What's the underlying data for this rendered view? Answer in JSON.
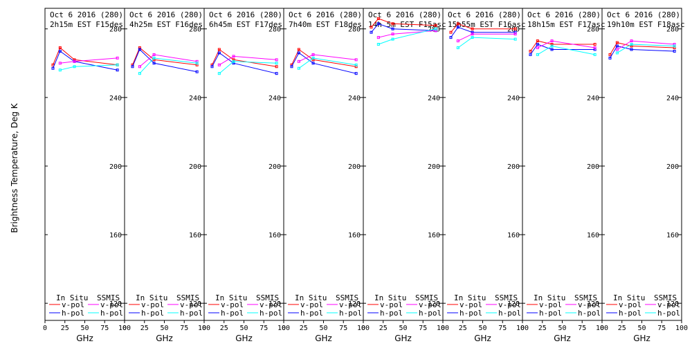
{
  "figure": {
    "ylabel": "Brightness Temperature, Deg K",
    "xlabel": "GHz",
    "legend": {
      "in_situ_header": "In Situ",
      "ssmis_header": "SSMIS",
      "vpol_label": "v-pol",
      "hpol_label": "h-pol"
    }
  },
  "colors": {
    "in_situ_vpol": "#ff0000",
    "in_situ_hpol": "#0000ff",
    "ssmis_vpol": "#ff00ff",
    "ssmis_hpol": "#00ffff",
    "axes": "#000000",
    "background": "#ffffff"
  },
  "chart_data": [
    {
      "type": "line",
      "title_line1": "Oct 6 2016 (280)",
      "title_line2": "2h15m EST F15des",
      "xlim": [
        0,
        100
      ],
      "ylim": [
        110,
        292
      ],
      "xticks": [
        0,
        25,
        50,
        75,
        100
      ],
      "xtick_labels": [
        "0",
        "25",
        "50",
        "75",
        "100"
      ],
      "yticks": [
        120,
        160,
        200,
        240,
        280
      ],
      "ytick_labels": [
        "120",
        "160",
        "200",
        "240",
        "280"
      ],
      "series": [
        {
          "name": "In Situ v-pol",
          "x": [
            10,
            19,
            37,
            91
          ],
          "y": [
            259,
            269,
            262,
            259
          ]
        },
        {
          "name": "In Situ h-pol",
          "x": [
            10,
            19,
            37,
            91
          ],
          "y": [
            257,
            267,
            261,
            256
          ]
        },
        {
          "name": "SSMIS v-pol",
          "x": [
            19,
            37,
            91
          ],
          "y": [
            260,
            261,
            263
          ]
        },
        {
          "name": "SSMIS h-pol",
          "x": [
            19,
            37,
            91
          ],
          "y": [
            256,
            258,
            259
          ]
        }
      ]
    },
    {
      "type": "line",
      "title_line1": "Oct 6 2016 (280)",
      "title_line2": "4h25m EST F16des",
      "xlim": [
        0,
        100
      ],
      "ylim": [
        110,
        292
      ],
      "xticks": [
        0,
        25,
        50,
        75,
        100
      ],
      "xtick_labels": [
        "0",
        "25",
        "50",
        "75",
        "100"
      ],
      "yticks": [
        120,
        160,
        200,
        240,
        280
      ],
      "ytick_labels": [
        "120",
        "160",
        "200",
        "240",
        "280"
      ],
      "series": [
        {
          "name": "In Situ v-pol",
          "x": [
            10,
            19,
            37,
            91
          ],
          "y": [
            259,
            269,
            262,
            259
          ]
        },
        {
          "name": "In Situ h-pol",
          "x": [
            10,
            19,
            37,
            91
          ],
          "y": [
            258,
            268,
            260,
            255
          ]
        },
        {
          "name": "SSMIS v-pol",
          "x": [
            19,
            37,
            91
          ],
          "y": [
            258,
            265,
            261
          ]
        },
        {
          "name": "SSMIS h-pol",
          "x": [
            19,
            37,
            91
          ],
          "y": [
            254,
            263,
            260
          ]
        }
      ]
    },
    {
      "type": "line",
      "title_line1": "Oct 6 2016 (280)",
      "title_line2": "6h45m EST F17des",
      "xlim": [
        0,
        100
      ],
      "ylim": [
        110,
        292
      ],
      "xticks": [
        0,
        25,
        50,
        75,
        100
      ],
      "xtick_labels": [
        "0",
        "25",
        "50",
        "75",
        "100"
      ],
      "yticks": [
        120,
        160,
        200,
        240,
        280
      ],
      "ytick_labels": [
        "120",
        "160",
        "200",
        "240",
        "280"
      ],
      "series": [
        {
          "name": "In Situ v-pol",
          "x": [
            10,
            19,
            37,
            91
          ],
          "y": [
            259,
            268,
            262,
            258
          ]
        },
        {
          "name": "In Situ h-pol",
          "x": [
            10,
            19,
            37,
            91
          ],
          "y": [
            258,
            266,
            260,
            254
          ]
        },
        {
          "name": "SSMIS v-pol",
          "x": [
            19,
            37,
            91
          ],
          "y": [
            259,
            264,
            262
          ]
        },
        {
          "name": "SSMIS h-pol",
          "x": [
            19,
            37,
            91
          ],
          "y": [
            254,
            261,
            260
          ]
        }
      ]
    },
    {
      "type": "line",
      "title_line1": "Oct 6 2016 (280)",
      "title_line2": "7h40m EST F18des",
      "xlim": [
        0,
        100
      ],
      "ylim": [
        110,
        292
      ],
      "xticks": [
        0,
        25,
        50,
        75,
        100
      ],
      "xtick_labels": [
        "0",
        "25",
        "50",
        "75",
        "100"
      ],
      "yticks": [
        120,
        160,
        200,
        240,
        280
      ],
      "ytick_labels": [
        "120",
        "160",
        "200",
        "240",
        "280"
      ],
      "series": [
        {
          "name": "In Situ v-pol",
          "x": [
            10,
            19,
            37,
            91
          ],
          "y": [
            259,
            268,
            262,
            258
          ]
        },
        {
          "name": "In Situ h-pol",
          "x": [
            10,
            19,
            37,
            91
          ],
          "y": [
            258,
            266,
            260,
            254
          ]
        },
        {
          "name": "SSMIS v-pol",
          "x": [
            19,
            37,
            91
          ],
          "y": [
            261,
            265,
            262
          ]
        },
        {
          "name": "SSMIS h-pol",
          "x": [
            19,
            37,
            91
          ],
          "y": [
            257,
            263,
            259
          ]
        }
      ]
    },
    {
      "type": "line",
      "title_line1": "Oct 6 2016 (280)",
      "title_line2": "14h 5m EST F15asc",
      "xlim": [
        0,
        100
      ],
      "ylim": [
        110,
        292
      ],
      "xticks": [
        0,
        25,
        50,
        75,
        100
      ],
      "xtick_labels": [
        "0",
        "25",
        "50",
        "75",
        "100"
      ],
      "yticks": [
        120,
        160,
        200,
        240,
        280
      ],
      "ytick_labels": [
        "120",
        "160",
        "200",
        "240",
        "280"
      ],
      "series": [
        {
          "name": "In Situ v-pol",
          "x": [
            10,
            19,
            37,
            91
          ],
          "y": [
            281,
            286,
            283,
            282
          ]
        },
        {
          "name": "In Situ h-pol",
          "x": [
            10,
            19,
            37,
            91
          ],
          "y": [
            278,
            283,
            280,
            279
          ]
        },
        {
          "name": "SSMIS v-pol",
          "x": [
            19,
            37,
            91
          ],
          "y": [
            275,
            277,
            279
          ]
        },
        {
          "name": "SSMIS h-pol",
          "x": [
            19,
            37,
            91
          ],
          "y": [
            271,
            274,
            280
          ]
        }
      ]
    },
    {
      "type": "line",
      "title_line1": "Oct 6 2016 (280)",
      "title_line2": "15h55m EST F16asc",
      "xlim": [
        0,
        100
      ],
      "ylim": [
        110,
        292
      ],
      "xticks": [
        0,
        25,
        50,
        75,
        100
      ],
      "xtick_labels": [
        "0",
        "25",
        "50",
        "75",
        "100"
      ],
      "yticks": [
        120,
        160,
        200,
        240,
        280
      ],
      "ytick_labels": [
        "120",
        "160",
        "200",
        "240",
        "280"
      ],
      "series": [
        {
          "name": "In Situ v-pol",
          "x": [
            10,
            19,
            37,
            91
          ],
          "y": [
            278,
            283,
            280,
            280
          ]
        },
        {
          "name": "In Situ h-pol",
          "x": [
            10,
            19,
            37,
            91
          ],
          "y": [
            275,
            281,
            278,
            278
          ]
        },
        {
          "name": "SSMIS v-pol",
          "x": [
            19,
            37,
            91
          ],
          "y": [
            273,
            277,
            277
          ]
        },
        {
          "name": "SSMIS h-pol",
          "x": [
            19,
            37,
            91
          ],
          "y": [
            269,
            275,
            274
          ]
        }
      ]
    },
    {
      "type": "line",
      "title_line1": "Oct 6 2016 (280)",
      "title_line2": "18h15m EST F17asc",
      "xlim": [
        0,
        100
      ],
      "ylim": [
        110,
        292
      ],
      "xticks": [
        0,
        25,
        50,
        75,
        100
      ],
      "xtick_labels": [
        "0",
        "25",
        "50",
        "75",
        "100"
      ],
      "yticks": [
        120,
        160,
        200,
        240,
        280
      ],
      "ytick_labels": [
        "120",
        "160",
        "200",
        "240",
        "280"
      ],
      "series": [
        {
          "name": "In Situ v-pol",
          "x": [
            10,
            19,
            37,
            91
          ],
          "y": [
            267,
            273,
            271,
            271
          ]
        },
        {
          "name": "In Situ h-pol",
          "x": [
            10,
            19,
            37,
            91
          ],
          "y": [
            265,
            271,
            268,
            268
          ]
        },
        {
          "name": "SSMIS v-pol",
          "x": [
            19,
            37,
            91
          ],
          "y": [
            269,
            273,
            269
          ]
        },
        {
          "name": "SSMIS h-pol",
          "x": [
            19,
            37,
            91
          ],
          "y": [
            265,
            270,
            265
          ]
        }
      ]
    },
    {
      "type": "line",
      "title_line1": "Oct 6 2016 (280)",
      "title_line2": "19h10m EST F18asc",
      "xlim": [
        0,
        100
      ],
      "ylim": [
        110,
        292
      ],
      "xticks": [
        0,
        25,
        50,
        75,
        100
      ],
      "xtick_labels": [
        "0",
        "25",
        "50",
        "75",
        "100"
      ],
      "yticks": [
        120,
        160,
        200,
        240,
        280
      ],
      "ytick_labels": [
        "120",
        "160",
        "200",
        "240",
        "280"
      ],
      "series": [
        {
          "name": "In Situ v-pol",
          "x": [
            10,
            19,
            37,
            91
          ],
          "y": [
            265,
            272,
            270,
            269
          ]
        },
        {
          "name": "In Situ h-pol",
          "x": [
            10,
            19,
            37,
            91
          ],
          "y": [
            263,
            270,
            268,
            267
          ]
        },
        {
          "name": "SSMIS v-pol",
          "x": [
            19,
            37,
            91
          ],
          "y": [
            268,
            273,
            271
          ]
        },
        {
          "name": "SSMIS h-pol",
          "x": [
            19,
            37,
            91
          ],
          "y": [
            266,
            271,
            270
          ]
        }
      ]
    }
  ]
}
